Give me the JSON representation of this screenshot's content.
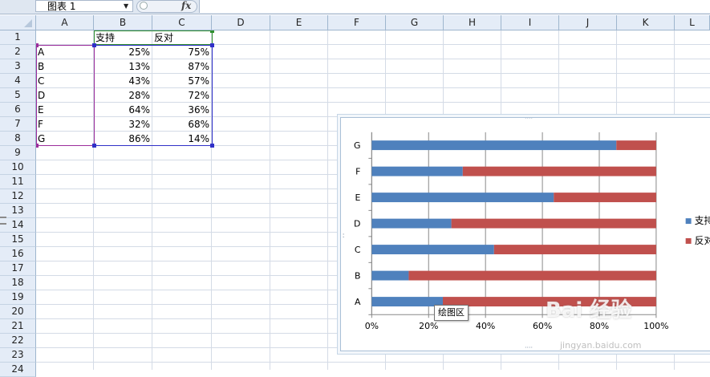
{
  "formula_bar": {
    "name_box": "图表 1",
    "fx_label": "fx",
    "formula": ""
  },
  "columns": [
    "A",
    "B",
    "C",
    "D",
    "E",
    "F",
    "G",
    "H",
    "I",
    "J",
    "K",
    "L"
  ],
  "rows": [
    "1",
    "2",
    "3",
    "4",
    "5",
    "6",
    "7",
    "8",
    "9",
    "10",
    "11",
    "12",
    "13",
    "14",
    "15",
    "16",
    "17",
    "18",
    "19",
    "20",
    "21",
    "22",
    "23",
    "24"
  ],
  "sheet": {
    "header": [
      "",
      "支持",
      "反对"
    ],
    "records": [
      {
        "label": "A",
        "support": "25%",
        "oppose": "75%"
      },
      {
        "label": "B",
        "support": "13%",
        "oppose": "87%"
      },
      {
        "label": "C",
        "support": "43%",
        "oppose": "57%"
      },
      {
        "label": "D",
        "support": "28%",
        "oppose": "72%"
      },
      {
        "label": "E",
        "support": "64%",
        "oppose": "36%"
      },
      {
        "label": "F",
        "support": "32%",
        "oppose": "68%"
      },
      {
        "label": "G",
        "support": "86%",
        "oppose": "14%"
      }
    ]
  },
  "chart_data": {
    "type": "bar",
    "orientation": "horizontal",
    "stacked": "percent",
    "categories": [
      "A",
      "B",
      "C",
      "D",
      "E",
      "F",
      "G"
    ],
    "series": [
      {
        "name": "支持",
        "values": [
          25,
          13,
          43,
          28,
          64,
          32,
          86
        ],
        "color": "#4f81bd"
      },
      {
        "name": "反对",
        "values": [
          75,
          87,
          57,
          72,
          36,
          68,
          14
        ],
        "color": "#c0504d"
      }
    ],
    "x_ticks": [
      "0%",
      "20%",
      "40%",
      "60%",
      "80%",
      "100%"
    ],
    "xlim": [
      0,
      100
    ],
    "grid": true,
    "legend": "right",
    "legend_visible": [
      "支持",
      "反对"
    ]
  },
  "tooltip": "绘图区",
  "watermark": {
    "main": "Bai 经验",
    "sub": "jingyan.baidu.com"
  }
}
